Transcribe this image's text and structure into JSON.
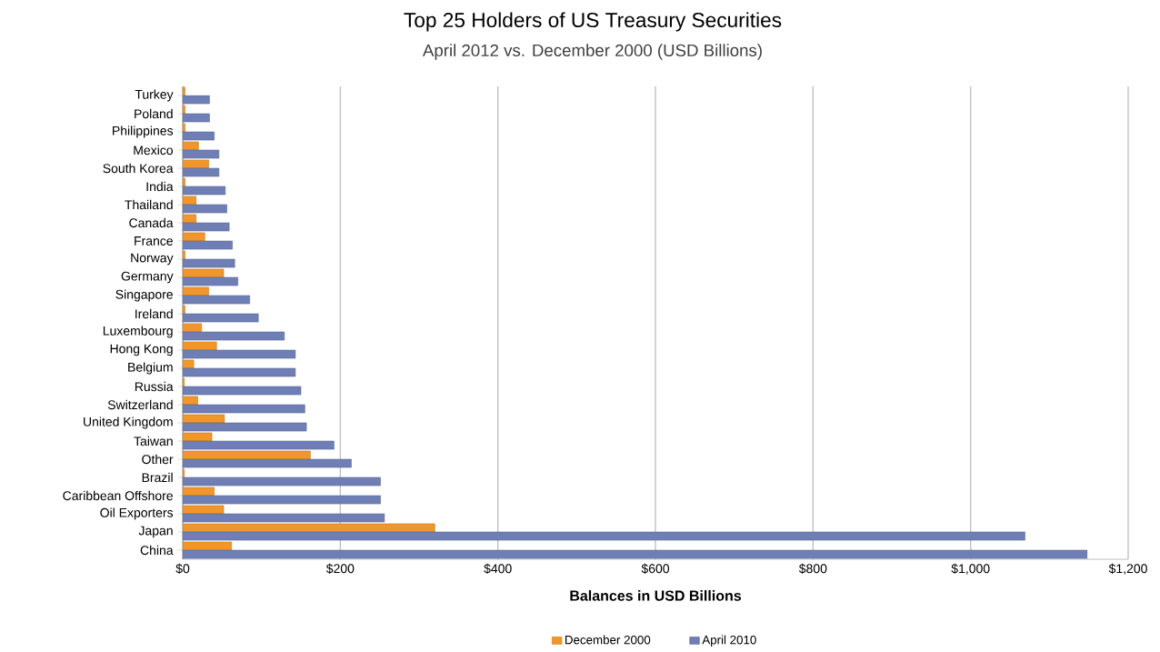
{
  "chart_data": {
    "type": "bar",
    "orientation": "horizontal",
    "title": "Top 25 Holders of US Treasury Securities",
    "subtitle": "April 2012 vs. December 2000 (USD Billions)",
    "xlabel": "Balances in USD Billions",
    "categories": [
      "Turkey",
      "Poland",
      "Philippines",
      "Mexico",
      "South Korea",
      "India",
      "Thailand",
      "Canada",
      "France",
      "Norway",
      "Germany",
      "Singapore",
      "Ireland",
      "Luxembourg",
      "Hong Kong",
      "Belgium",
      "Russia",
      "Switzerland",
      "United Kingdom",
      "Taiwan",
      "Other",
      "Brazil",
      "Caribbean Offshore",
      "Oil Exporters",
      "Japan",
      "China"
    ],
    "series": [
      {
        "name": "December 2000",
        "color": "#f0962a",
        "values": [
          3,
          3,
          3,
          20,
          33,
          3,
          17,
          17,
          28,
          3,
          52,
          33,
          3,
          24,
          43,
          14,
          2,
          19,
          53,
          37,
          162,
          2,
          40,
          52,
          320,
          62
        ]
      },
      {
        "name": "April 2010",
        "color": "#6f7fb5",
        "values": [
          34,
          34,
          40,
          46,
          46,
          54,
          56,
          59,
          63,
          66,
          70,
          85,
          96,
          129,
          143,
          143,
          150,
          155,
          157,
          192,
          214,
          251,
          251,
          256,
          1069,
          1148
        ]
      }
    ],
    "xlim": [
      0,
      1200
    ],
    "xticks": [
      {
        "value": 0,
        "label": "$0"
      },
      {
        "value": 200,
        "label": "$200"
      },
      {
        "value": 400,
        "label": "$400"
      },
      {
        "value": 600,
        "label": "$600"
      },
      {
        "value": 800,
        "label": "$800"
      },
      {
        "value": 1000,
        "label": "$1,000"
      },
      {
        "value": 1200,
        "label": "$1,200"
      }
    ],
    "grid": "x",
    "legend": "bottom"
  }
}
